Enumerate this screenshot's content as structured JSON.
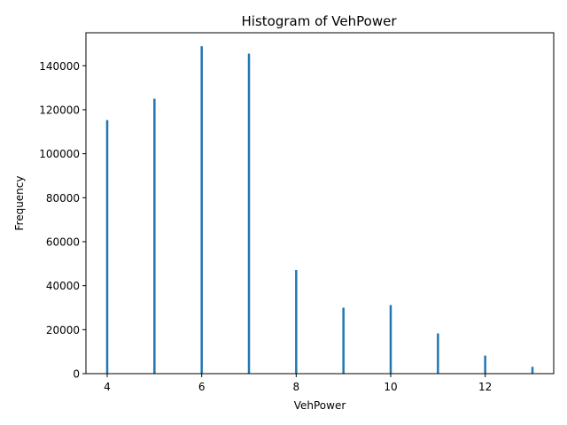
{
  "chart_data": {
    "type": "bar",
    "title": "Histogram of VehPower",
    "xlabel": "VehPower",
    "ylabel": "Frequency",
    "xlim": [
      3.55,
      13.45
    ],
    "ylim": [
      0,
      155000
    ],
    "x_ticks": [
      4,
      6,
      8,
      10,
      12
    ],
    "x_tick_labels": [
      "4",
      "6",
      "8",
      "10",
      "12"
    ],
    "y_ticks": [
      0,
      20000,
      40000,
      60000,
      80000,
      100000,
      120000,
      140000
    ],
    "y_tick_labels": [
      "0",
      "20000",
      "40000",
      "60000",
      "80000",
      "100000",
      "120000",
      "140000"
    ],
    "bar_color": "#1f77b4",
    "grid": false,
    "legend": "none",
    "x": [
      4,
      5,
      6,
      7,
      8,
      9,
      10,
      11,
      12,
      13
    ],
    "values": [
      115300,
      125000,
      148900,
      145500,
      47100,
      30000,
      31200,
      18300,
      8200,
      3100
    ]
  }
}
